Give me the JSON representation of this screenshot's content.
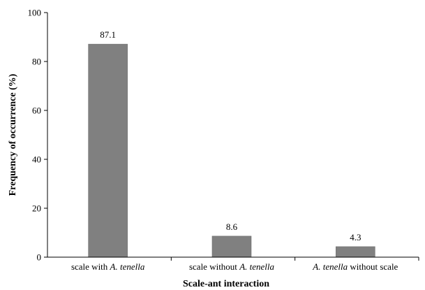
{
  "chart_data": {
    "type": "bar",
    "categories": [
      {
        "parts": [
          {
            "t": "scale with ",
            "i": false
          },
          {
            "t": "A. tenella",
            "i": true
          }
        ]
      },
      {
        "parts": [
          {
            "t": "scale without ",
            "i": false
          },
          {
            "t": "A. tenella",
            "i": true
          }
        ]
      },
      {
        "parts": [
          {
            "t": "A. tenella",
            "i": true
          },
          {
            "t": " without scale",
            "i": false
          }
        ]
      }
    ],
    "values": [
      87.1,
      8.6,
      4.3
    ],
    "data_labels": [
      "87.1",
      "8.6",
      "4.3"
    ],
    "xlabel": "Scale-ant interaction",
    "ylabel": "Frequency of occurrence (%)",
    "ylim": [
      0,
      100
    ],
    "yticks": [
      0,
      20,
      40,
      60,
      80,
      100
    ],
    "grid": false,
    "legend": "none",
    "bar_color": "#808080"
  }
}
